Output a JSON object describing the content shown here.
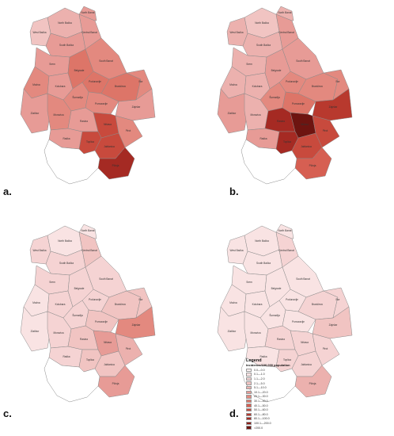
{
  "panels": [
    {
      "id": "a",
      "label": "a."
    },
    {
      "id": "b",
      "label": "b."
    },
    {
      "id": "c",
      "label": "c."
    },
    {
      "id": "d",
      "label": "d."
    }
  ],
  "districts": [
    "North Bačka",
    "West Bačka",
    "South Bačka",
    "Central Banat",
    "North Banat",
    "South Banat",
    "Srem",
    "Mačva",
    "Kolubara",
    "Belgrade",
    "Podunavlje",
    "Braničevo",
    "Šumadija",
    "Pomoravlje",
    "Bor",
    "Zaječar",
    "Zlatibor",
    "Moravica",
    "Raška",
    "Rasina",
    "Nišava",
    "Toplica",
    "Pirot",
    "Jablanica",
    "Pčinja"
  ],
  "colors": {
    "empty": "#ffffff",
    "border": "#8a8a8a",
    "kosovo_fill": "#ffffff",
    "ramp": [
      "#fdf2f2",
      "#f9e3e3",
      "#f5d3d3",
      "#f1c4c2",
      "#ecb1ae",
      "#e79b96",
      "#e3897f",
      "#dd7568",
      "#d65f52",
      "#c84a3d",
      "#b8392e",
      "#a52a23",
      "#8c1e19",
      "#6e1410"
    ]
  },
  "choropleth": {
    "a": [
      4,
      3,
      5,
      5,
      5,
      6,
      5,
      6,
      5,
      7,
      7,
      7,
      6,
      6,
      6,
      5,
      5,
      6,
      5,
      5,
      9,
      9,
      6,
      9,
      11
    ],
    "b": [
      3,
      4,
      4,
      5,
      4,
      5,
      4,
      4,
      4,
      5,
      6,
      6,
      6,
      7,
      6,
      10,
      5,
      4,
      5,
      11,
      13,
      11,
      9,
      9,
      8
    ],
    "c": [
      1,
      2,
      2,
      3,
      1,
      2,
      2,
      1,
      2,
      2,
      2,
      3,
      2,
      3,
      3,
      6,
      1,
      2,
      2,
      3,
      5,
      3,
      4,
      3,
      5
    ],
    "d": [
      1,
      1,
      1,
      2,
      1,
      1,
      1,
      1,
      1,
      1,
      1,
      2,
      1,
      1,
      2,
      3,
      1,
      1,
      1,
      2,
      2,
      2,
      2,
      2,
      4
    ]
  },
  "legend": {
    "title": "Legend",
    "subtitle": "Incidence/100,000 population",
    "classes": [
      "0.0—0.0",
      "0.1—1.0",
      "1.1—2.0",
      "2.1—5.0",
      "5.1—10.0",
      "10.1—20.0",
      "20.1—30.0",
      "30.1—40.0",
      "40.1—50.0",
      "50.1—60.0",
      "60.1—80.0",
      "80.1—100.0",
      "100.1—200.0",
      ">200.0"
    ]
  }
}
